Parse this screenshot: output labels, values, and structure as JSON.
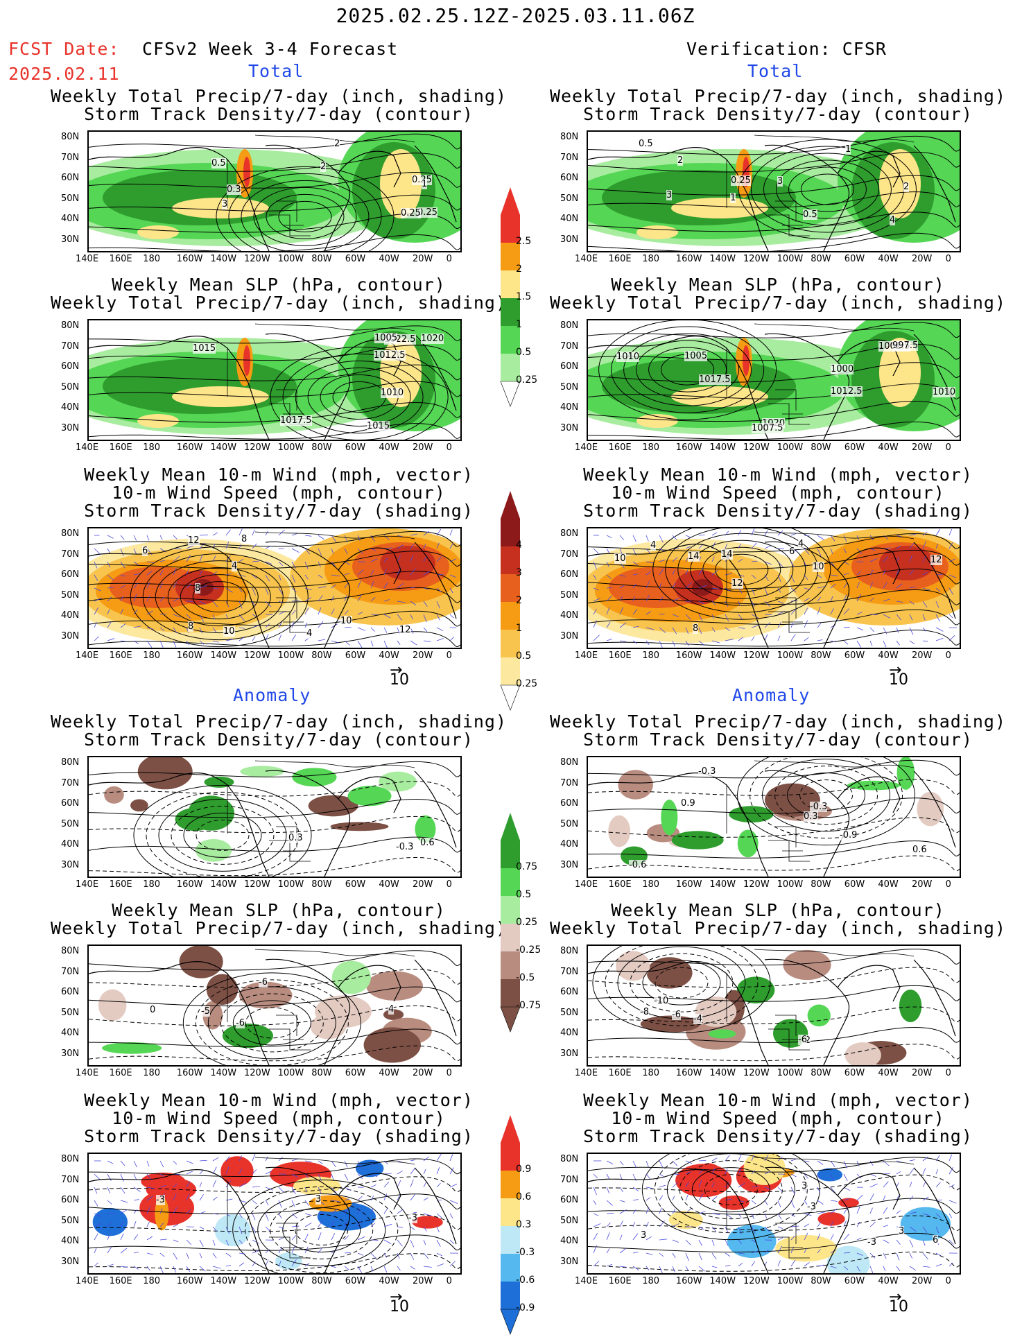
{
  "header": {
    "date_range": "2025.02.25.12Z-2025.03.11.06Z",
    "fcst_label": "FCST Date:",
    "fcst_date": "2025.02.11",
    "model_title": "CFSv2 Week 3-4 Forecast",
    "verification_title": "Verification: CFSR"
  },
  "sections": {
    "total": "Total",
    "anomaly": "Anomaly"
  },
  "panel_titles": {
    "precip_storm": "Weekly Total Precip/7-day (inch, shading)\nStorm Track Density/7-day (contour)",
    "slp_precip": "Weekly Mean SLP (hPa, contour)\nWeekly Total Precip/7-day (inch, shading)",
    "wind": "Weekly Mean 10-m Wind (mph, vector)\n10-m Wind Speed (mph, contour)\nStorm Track Density/7-day (shading)"
  },
  "axes": {
    "lat_labels": [
      "80N",
      "70N",
      "60N",
      "50N",
      "40N",
      "30N"
    ],
    "lon_labels": [
      "140E",
      "160E",
      "180",
      "160W",
      "140W",
      "120W",
      "100W",
      "80W",
      "60W",
      "40W",
      "20W",
      "0"
    ]
  },
  "colorbars": {
    "precip_total": {
      "labels": [
        "2.5",
        "2",
        "1.5",
        "1",
        "0.5",
        "0.25"
      ],
      "colors": [
        "#e8332b",
        "#f59b14",
        "#fde58a",
        "#2e9d2e",
        "#55d655",
        "#a8ec9f"
      ]
    },
    "storm_total": {
      "labels": [
        "4",
        "3",
        "2",
        "1",
        "0.5",
        "0.25"
      ],
      "colors": [
        "#8c1a1a",
        "#c6301e",
        "#e8601e",
        "#f59b14",
        "#f8c44e",
        "#fde8a0"
      ]
    },
    "precip_anom": {
      "labels": [
        "0.75",
        "0.5",
        "0.25",
        "-0.25",
        "-0.5",
        "-0.75"
      ],
      "colors": [
        "#2e9d2e",
        "#55d655",
        "#a8ec9f",
        "#e3cbc2",
        "#b98c80",
        "#7d5045"
      ]
    },
    "storm_anom": {
      "labels": [
        "0.9",
        "0.6",
        "0.3",
        "-0.3",
        "-0.6",
        "-0.9"
      ],
      "colors": [
        "#e8332b",
        "#f59b14",
        "#fde58a",
        "#bfe8f7",
        "#55b8ee",
        "#1e6fd8"
      ]
    }
  },
  "vector_ref": "10",
  "map_labels": {
    "fc_precip_storm": [
      "0.5",
      "0.25",
      "2",
      "1",
      "0.3",
      "0.25",
      "3",
      "2",
      "0.25"
    ],
    "vf_precip_storm": [
      "3",
      "2",
      "1",
      "0.5",
      "0.25",
      "4",
      "2",
      "3",
      "0.5",
      "1"
    ],
    "fc_slp": [
      "1022.5",
      "1015",
      "1020",
      "1010",
      "1012.5",
      "1017.5",
      "1005",
      "1015"
    ],
    "vf_slp": [
      "1010",
      "1005",
      "1000",
      "1020",
      "1002.5",
      "1007.5",
      "1012.5",
      "1017.5",
      "997.5",
      "1010"
    ],
    "fc_wind": [
      "10",
      "4",
      "8",
      "10",
      "12",
      "6",
      "8",
      "12",
      "8",
      "4"
    ],
    "vf_wind": [
      "6",
      "4",
      "12",
      "14",
      "8",
      "10",
      "4",
      "12",
      "10",
      "14"
    ],
    "fc_anom_precip": [
      "-0.3",
      "0.6",
      "0.3"
    ],
    "vf_anom_precip": [
      "-0.6",
      "0.6",
      "-0.3",
      "0.9",
      "-0.9",
      "-0.3",
      "0.3"
    ],
    "fc_anom_slp": [
      "-6",
      "-5",
      "4",
      "-6",
      "0"
    ],
    "vf_anom_slp": [
      "-2",
      "-4",
      "-6",
      "-8",
      "-10",
      "-6"
    ],
    "fc_anom_wind": [
      "-3",
      "3",
      "-3"
    ],
    "vf_anom_wind": [
      "3",
      "-3",
      "3",
      "6",
      "3",
      "-3"
    ]
  }
}
